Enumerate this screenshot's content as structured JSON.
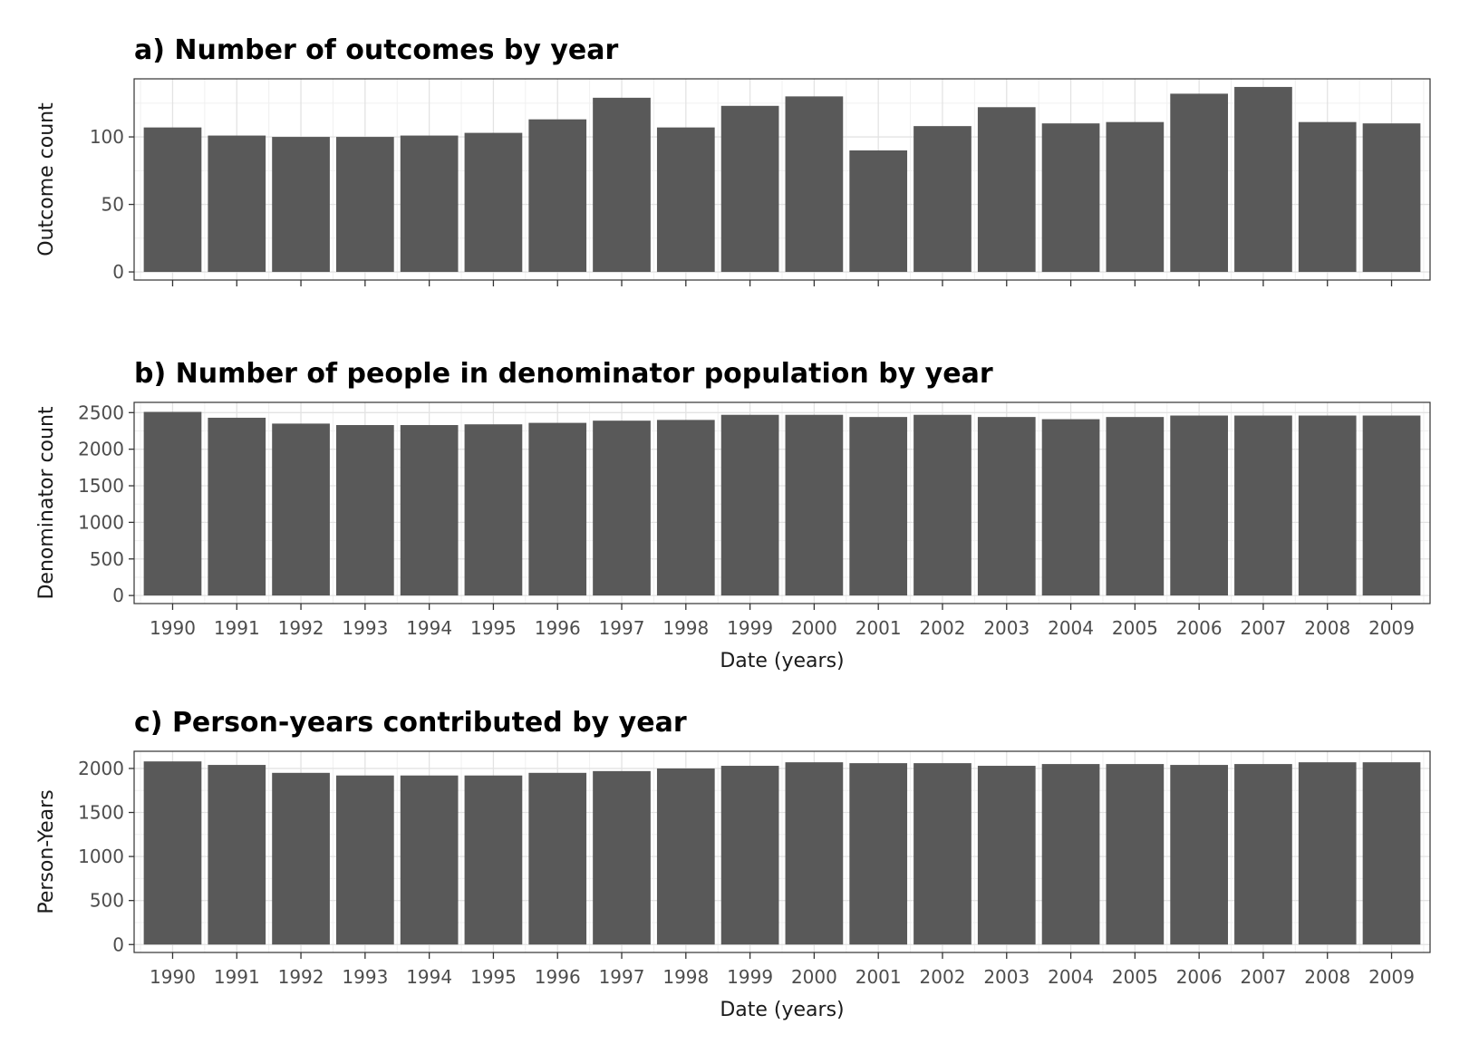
{
  "chart_data": [
    {
      "type": "bar",
      "title": "a) Number of outcomes by year",
      "xlabel": "",
      "ylabel": "Outcome count",
      "categories": [
        "1990",
        "1991",
        "1992",
        "1993",
        "1994",
        "1995",
        "1996",
        "1997",
        "1998",
        "1999",
        "2000",
        "2001",
        "2002",
        "2003",
        "2004",
        "2005",
        "2006",
        "2007",
        "2008",
        "2009"
      ],
      "values": [
        107,
        101,
        100,
        100,
        101,
        103,
        113,
        129,
        107,
        123,
        130,
        90,
        108,
        122,
        110,
        111,
        132,
        137,
        111,
        110
      ],
      "ylim": [
        -6,
        143
      ],
      "yticks": [
        0,
        50,
        100
      ],
      "show_x_tick_labels": false,
      "grid": true,
      "bar_color": "#595959"
    },
    {
      "type": "bar",
      "title": "b) Number of people in denominator population by year",
      "xlabel": "Date (years)",
      "ylabel": "Denominator count",
      "categories": [
        "1990",
        "1991",
        "1992",
        "1993",
        "1994",
        "1995",
        "1996",
        "1997",
        "1998",
        "1999",
        "2000",
        "2001",
        "2002",
        "2003",
        "2004",
        "2005",
        "2006",
        "2007",
        "2008",
        "2009"
      ],
      "values": [
        2510,
        2430,
        2350,
        2330,
        2330,
        2340,
        2360,
        2390,
        2400,
        2470,
        2470,
        2440,
        2470,
        2440,
        2410,
        2440,
        2460,
        2460,
        2460,
        2460
      ],
      "ylim": [
        -110,
        2640
      ],
      "yticks": [
        0,
        500,
        1000,
        1500,
        2000,
        2500
      ],
      "show_x_tick_labels": true,
      "grid": true,
      "bar_color": "#595959"
    },
    {
      "type": "bar",
      "title": "c) Person-years contributed by year",
      "xlabel": "Date (years)",
      "ylabel": "Person-Years",
      "categories": [
        "1990",
        "1991",
        "1992",
        "1993",
        "1994",
        "1995",
        "1996",
        "1997",
        "1998",
        "1999",
        "2000",
        "2001",
        "2002",
        "2003",
        "2004",
        "2005",
        "2006",
        "2007",
        "2008",
        "2009"
      ],
      "values": [
        2080,
        2040,
        1950,
        1920,
        1920,
        1920,
        1950,
        1970,
        2000,
        2030,
        2070,
        2060,
        2060,
        2030,
        2050,
        2050,
        2040,
        2050,
        2070,
        2070
      ],
      "ylim": [
        -90,
        2195
      ],
      "yticks": [
        0,
        500,
        1000,
        1500,
        2000
      ],
      "show_x_tick_labels": true,
      "grid": true,
      "bar_color": "#595959"
    }
  ]
}
